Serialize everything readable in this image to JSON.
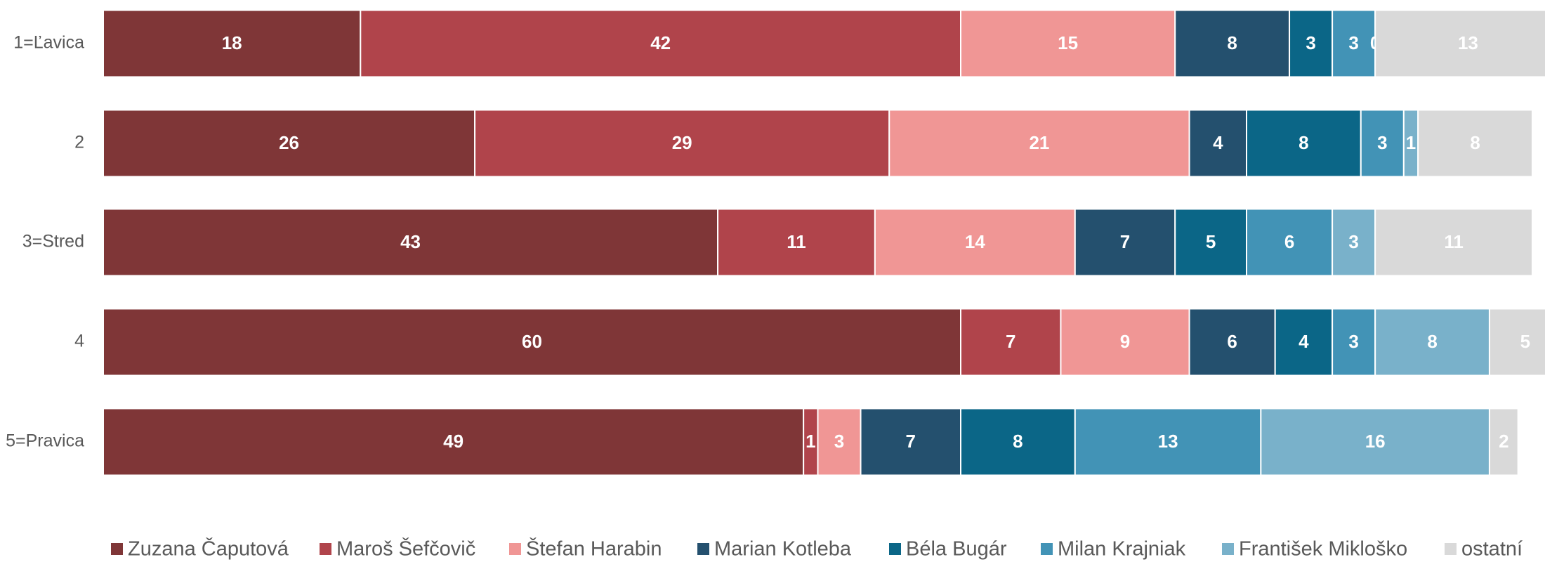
{
  "chart_data": {
    "type": "stacked-bar-horizontal",
    "categories": [
      "1=Ľavica",
      "2",
      "3=Stred",
      "4",
      "5=Pravica"
    ],
    "series": [
      {
        "name": "Zuzana Čaputová",
        "color": "#7f3637",
        "values": [
          18,
          26,
          43,
          60,
          49
        ]
      },
      {
        "name": "Maroš Šefčovič",
        "color": "#b0444b",
        "values": [
          42,
          29,
          11,
          7,
          1
        ]
      },
      {
        "name": "Štefan Harabin",
        "color": "#f09695",
        "values": [
          15,
          21,
          14,
          9,
          3
        ]
      },
      {
        "name": "Marian Kotleba",
        "color": "#24506e",
        "values": [
          8,
          4,
          7,
          6,
          7
        ]
      },
      {
        "name": "Béla Bugár",
        "color": "#0b6687",
        "values": [
          3,
          8,
          5,
          4,
          8
        ]
      },
      {
        "name": "Milan Krajniak",
        "color": "#4293b6",
        "values": [
          3,
          3,
          6,
          3,
          13
        ]
      },
      {
        "name": "František Mikloško",
        "color": "#79b1ca",
        "values": [
          0,
          1,
          3,
          8,
          16
        ]
      },
      {
        "name": "ostatní",
        "color": "#d9d9d9",
        "values": [
          13,
          8,
          11,
          5,
          2
        ]
      }
    ]
  }
}
